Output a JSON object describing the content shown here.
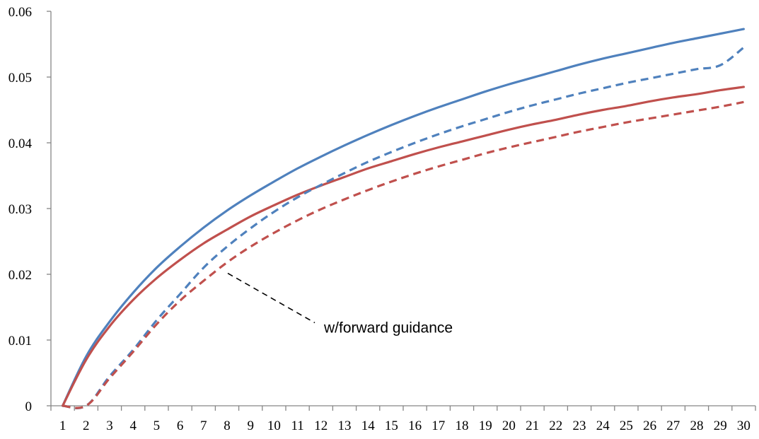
{
  "chart_data": {
    "type": "line",
    "title": "",
    "xlabel": "",
    "ylabel": "",
    "x": [
      1,
      2,
      3,
      4,
      5,
      6,
      7,
      8,
      9,
      10,
      11,
      12,
      13,
      14,
      15,
      16,
      17,
      18,
      19,
      20,
      21,
      22,
      23,
      24,
      25,
      26,
      27,
      28,
      29,
      30
    ],
    "x_tick_labels": [
      "1",
      "2",
      "3",
      "4",
      "5",
      "6",
      "7",
      "8",
      "9",
      "10",
      "11",
      "12",
      "13",
      "14",
      "15",
      "16",
      "17",
      "18",
      "19",
      "20",
      "21",
      "22",
      "23",
      "24",
      "25",
      "26",
      "27",
      "28",
      "29",
      "30"
    ],
    "ylim": [
      0,
      0.06
    ],
    "y_ticks": [
      0,
      0.01,
      0.02,
      0.03,
      0.04,
      0.05,
      0.06
    ],
    "y_tick_labels": [
      "0",
      "0.01",
      "0.02",
      "0.03",
      "0.04",
      "0.05",
      "0.06"
    ],
    "grid": false,
    "legend": "none",
    "series": [
      {
        "color": "#4F81BD",
        "style": "solid",
        "values": [
          0.0,
          0.0075,
          0.0128,
          0.0172,
          0.021,
          0.0242,
          0.0271,
          0.0297,
          0.032,
          0.0341,
          0.0361,
          0.0379,
          0.0396,
          0.0412,
          0.0427,
          0.0441,
          0.0454,
          0.0466,
          0.0478,
          0.0489,
          0.0499,
          0.0509,
          0.0519,
          0.0528,
          0.0536,
          0.0544,
          0.0552,
          0.0559,
          0.0566,
          0.0573
        ]
      },
      {
        "color": "#C0504D",
        "style": "solid",
        "values": [
          0.0,
          0.007,
          0.0121,
          0.0161,
          0.0194,
          0.0222,
          0.0247,
          0.0268,
          0.0288,
          0.0305,
          0.0321,
          0.0335,
          0.0348,
          0.0361,
          0.0372,
          0.0383,
          0.0393,
          0.0402,
          0.0411,
          0.042,
          0.0428,
          0.0435,
          0.0443,
          0.045,
          0.0456,
          0.0463,
          0.0469,
          0.0474,
          0.048,
          0.0485
        ]
      },
      {
        "color": "#4F81BD",
        "style": "dashed",
        "values": [
          0.0,
          0.0,
          0.0045,
          0.0085,
          0.013,
          0.017,
          0.021,
          0.0242,
          0.027,
          0.0295,
          0.0317,
          0.0336,
          0.0354,
          0.0371,
          0.0386,
          0.04,
          0.0413,
          0.0425,
          0.0436,
          0.0447,
          0.0457,
          0.0466,
          0.0475,
          0.0483,
          0.0491,
          0.0498,
          0.0505,
          0.0512,
          0.0518,
          0.0545
        ]
      },
      {
        "color": "#C0504D",
        "style": "dashed",
        "values": [
          0.0,
          0.0,
          0.0042,
          0.0082,
          0.0124,
          0.016,
          0.019,
          0.0218,
          0.0242,
          0.0263,
          0.0282,
          0.0299,
          0.0314,
          0.0328,
          0.0341,
          0.0353,
          0.0364,
          0.0374,
          0.0384,
          0.0393,
          0.0401,
          0.0409,
          0.0417,
          0.0424,
          0.0431,
          0.0437,
          0.0443,
          0.0449,
          0.0455,
          0.0462
        ]
      }
    ],
    "annotations": [
      {
        "text": "w/forward guidance",
        "points_to_x": 8
      }
    ]
  }
}
